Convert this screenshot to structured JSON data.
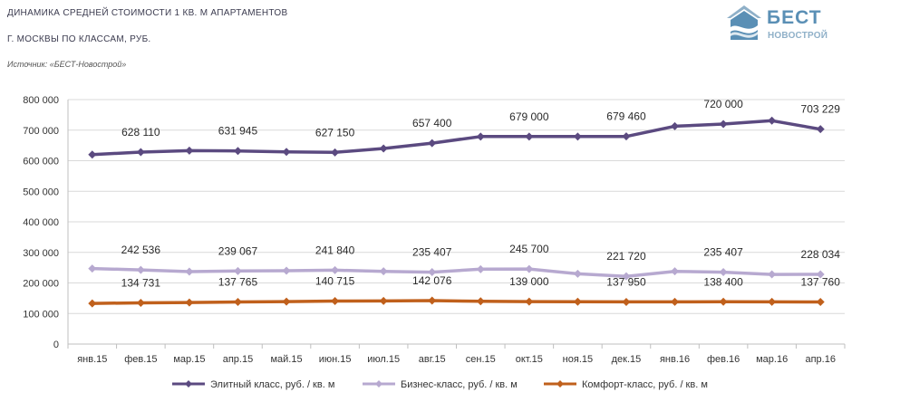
{
  "header": {
    "title_line1": "ДИНАМИКА СРЕДНЕЙ СТОИМОСТИ 1 КВ. М АПАРТАМЕНТОВ",
    "title_line2": "Г. МОСКВЫ ПО КЛАССАМ, РУБ.",
    "source": "Источник: «БЕСТ-Новострой»"
  },
  "logo": {
    "brand": "БЕСТ",
    "sub": "НОВОСТРОЙ",
    "colors": {
      "main": "#5a8fb5",
      "light": "#8fb0c8"
    }
  },
  "chart_data": {
    "type": "line",
    "categories": [
      "янв.15",
      "фев.15",
      "мар.15",
      "апр.15",
      "май.15",
      "июн.15",
      "июл.15",
      "авг.15",
      "сен.15",
      "окт.15",
      "ноя.15",
      "дек.15",
      "янв.16",
      "фев.16",
      "мар.16",
      "апр.16"
    ],
    "ylim": [
      0,
      800000
    ],
    "yticks": [
      {
        "value": 0,
        "label": "0"
      },
      {
        "value": 100000,
        "label": "100 000"
      },
      {
        "value": 200000,
        "label": "200 000"
      },
      {
        "value": 300000,
        "label": "300 000"
      },
      {
        "value": 400000,
        "label": "400 000"
      },
      {
        "value": 500000,
        "label": "500 000"
      },
      {
        "value": 600000,
        "label": "600 000"
      },
      {
        "value": 700000,
        "label": "700 000"
      },
      {
        "value": 800000,
        "label": "800 000"
      }
    ],
    "grid": true,
    "legend_position": "bottom",
    "series": [
      {
        "name": "Элитный класс, руб. / кв. м",
        "color": "#5b4a80",
        "values": [
          620000,
          628110,
          633000,
          631945,
          629000,
          627150,
          640000,
          657400,
          679000,
          679000,
          679000,
          679460,
          713000,
          720000,
          731000,
          703229
        ],
        "labels": [
          {
            "index": 1,
            "text": "628 110"
          },
          {
            "index": 3,
            "text": "631 945"
          },
          {
            "index": 5,
            "text": "627 150"
          },
          {
            "index": 7,
            "text": "657 400"
          },
          {
            "index": 9,
            "text": "679 000"
          },
          {
            "index": 11,
            "text": "679 460"
          },
          {
            "index": 13,
            "text": "720 000"
          },
          {
            "index": 15,
            "text": "703 229"
          }
        ]
      },
      {
        "name": "Бизнес-класс, руб. / кв. м",
        "color": "#b7a9d0",
        "values": [
          247000,
          242536,
          237000,
          239067,
          240000,
          241840,
          238000,
          235407,
          245000,
          245700,
          230000,
          221720,
          238000,
          235407,
          228000,
          228034
        ],
        "labels": [
          {
            "index": 1,
            "text": "242 536"
          },
          {
            "index": 3,
            "text": "239 067"
          },
          {
            "index": 5,
            "text": "241 840"
          },
          {
            "index": 7,
            "text": "235 407"
          },
          {
            "index": 9,
            "text": "245 700"
          },
          {
            "index": 11,
            "text": "221 720"
          },
          {
            "index": 13,
            "text": "235 407"
          },
          {
            "index": 15,
            "text": "228 034"
          }
        ]
      },
      {
        "name": "Комфорт-класс, руб. / кв. м",
        "color": "#c0601c",
        "values": [
          133000,
          134731,
          136000,
          137765,
          139000,
          140715,
          141000,
          142076,
          140000,
          139000,
          138500,
          137950,
          138200,
          138400,
          138000,
          137760
        ],
        "labels": [
          {
            "index": 1,
            "text": "134 731"
          },
          {
            "index": 3,
            "text": "137 765"
          },
          {
            "index": 5,
            "text": "140 715"
          },
          {
            "index": 7,
            "text": "142 076"
          },
          {
            "index": 9,
            "text": "139 000"
          },
          {
            "index": 11,
            "text": "137 950"
          },
          {
            "index": 13,
            "text": "138 400"
          },
          {
            "index": 15,
            "text": "137 760"
          }
        ]
      }
    ]
  }
}
